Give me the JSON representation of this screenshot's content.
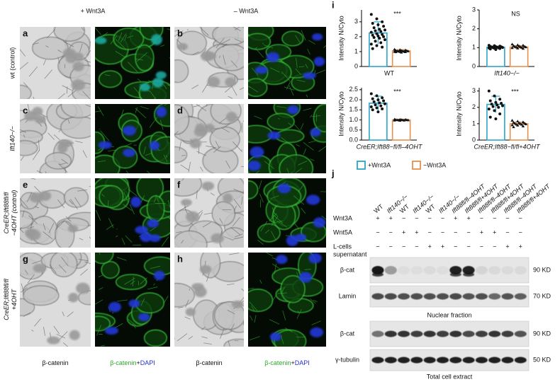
{
  "figure": {
    "col_headers": [
      "+ Wnt3A",
      "– Wnt3A"
    ],
    "panel_letters": [
      "a",
      "b",
      "c",
      "d",
      "e",
      "f",
      "g",
      "h"
    ],
    "row_labels": [
      [
        "wt (control)"
      ],
      [
        "Ift140−/−"
      ],
      [
        "CreER;Ift88fl/fl",
        "−4OHT (control)"
      ],
      [
        "CreER;Ift88fl/fl",
        "+4OHT"
      ]
    ],
    "bottom_labels": [
      [
        "β-catenin"
      ],
      [
        "β-catenin",
        "+",
        "DAPI"
      ],
      [
        "β-catenin"
      ],
      [
        "β-catenin",
        "+",
        "DAPI"
      ]
    ]
  },
  "charts_label": "i",
  "legend": [
    {
      "name": "+Wnt3A",
      "color": "#2aa6c9"
    },
    {
      "name": "−Wnt3A",
      "color": "#e8904a"
    }
  ],
  "chart_data": [
    {
      "type": "bar",
      "x_label": "WT",
      "y_label": "Intensity N/Cyto",
      "annotation": "***",
      "values": [
        2.25,
        1.05
      ],
      "errors": [
        0.75,
        0.08
      ],
      "points": [
        [
          3.5,
          3.2,
          3.0,
          2.9,
          2.8,
          2.7,
          2.6,
          2.5,
          2.45,
          2.4,
          2.35,
          2.3,
          2.2,
          2.15,
          2.1,
          2.05,
          2.0,
          1.95,
          1.9,
          1.8,
          1.7,
          1.6,
          1.5,
          1.4,
          1.3,
          1.2
        ],
        [
          1.15,
          1.12,
          1.1,
          1.08,
          1.07,
          1.06,
          1.05,
          1.04,
          1.03,
          1.02,
          1.01,
          1.0,
          0.99,
          0.98,
          0.97,
          0.95
        ]
      ],
      "ylim": [
        0,
        3.8
      ],
      "yticks": [
        0,
        1,
        2,
        3
      ]
    },
    {
      "type": "bar",
      "x_label": "Ift140−/−",
      "y_label": "Intensity N/Cyto",
      "annotation": "NS",
      "values": [
        1.02,
        1.03
      ],
      "errors": [
        0.06,
        0.07
      ],
      "points": [
        [
          1.12,
          1.1,
          1.08,
          1.06,
          1.05,
          1.04,
          1.03,
          1.02,
          1.01,
          1.0,
          0.99,
          0.98,
          0.97,
          0.95,
          0.93,
          0.9
        ],
        [
          1.18,
          1.14,
          1.12,
          1.1,
          1.08,
          1.06,
          1.05,
          1.04,
          1.03,
          1.02,
          1.0,
          0.99,
          0.97,
          0.95
        ]
      ],
      "ylim": [
        0,
        3
      ],
      "yticks": [
        0,
        1,
        2,
        3
      ]
    },
    {
      "type": "bar",
      "x_label": "CreER;Ift88−fl/fl–4OHT",
      "y_label": "Intensity N/Cyto",
      "annotation": "***",
      "values": [
        1.83,
        1.0
      ],
      "errors": [
        0.35,
        0.03
      ],
      "points": [
        [
          2.3,
          2.2,
          2.1,
          2.05,
          2.0,
          1.95,
          1.9,
          1.85,
          1.8,
          1.75,
          1.7,
          1.65,
          1.6,
          1.55,
          1.5,
          1.4
        ],
        [
          1.03,
          1.02,
          1.02,
          1.01,
          1.01,
          1.0,
          1.0,
          1.0,
          0.99,
          0.99,
          0.98,
          0.98,
          0.97
        ]
      ],
      "ylim": [
        0,
        2.6
      ],
      "yticks": [
        {
          "value": 0,
          "label": "0.0"
        },
        0.5,
        {
          "value": 1,
          "label": "1.0"
        },
        1.5,
        {
          "value": 2,
          "label": "2.0"
        },
        2.5
      ]
    },
    {
      "type": "bar",
      "x_label": "CreER;Ift88−fl/fl+4OHT",
      "y_label": "Intensity N/Cyto",
      "annotation": "***",
      "values": [
        2.18,
        1.0
      ],
      "errors": [
        0.5,
        0.1
      ],
      "points": [
        [
          3.0,
          2.7,
          2.5,
          2.4,
          2.3,
          2.25,
          2.2,
          2.15,
          2.1,
          2.05,
          2.0,
          1.9,
          1.8,
          1.6,
          1.4,
          1.3
        ],
        [
          1.2,
          1.15,
          1.1,
          1.08,
          1.05,
          1.03,
          1.02,
          1.0,
          0.98,
          0.96,
          0.95,
          0.92,
          0.9,
          0.85,
          0.8
        ]
      ],
      "ylim": [
        0,
        3.2
      ],
      "yticks": [
        0,
        1,
        2,
        3
      ]
    }
  ],
  "blot": {
    "label": "j",
    "lanes": [
      "WT",
      "Ift140−/−",
      "WT",
      "Ift140−/−",
      "WT",
      "Ift140−/−",
      "Ift88fl/fl–4OHT",
      "Ift88fl/fl+4OHT",
      "Ift88fl/fl–4OHT",
      "Ift88fl/fl+4OHT",
      "Ift88fl/fl–4OHT",
      "Ift88fl/fl+4OHT"
    ],
    "treatments": [
      {
        "name": [
          "Wnt3A"
        ],
        "signs": [
          "+",
          "+",
          "−",
          "−",
          "−",
          "−",
          "+",
          "+",
          "−",
          "−",
          "−",
          "−"
        ]
      },
      {
        "name": [
          "Wnt5A"
        ],
        "signs": [
          "−",
          "−",
          "+",
          "+",
          "−",
          "−",
          "−",
          "−",
          "+",
          "+",
          "−",
          "−"
        ]
      },
      {
        "name": [
          "L-cells",
          "supernatant"
        ],
        "signs": [
          "−",
          "−",
          "−",
          "−",
          "+",
          "+",
          "−",
          "−",
          "−",
          "−",
          "+",
          "+"
        ]
      }
    ],
    "rows": [
      {
        "name": "β-cat",
        "size": "90 KD"
      },
      {
        "name": "Lamin",
        "size": "70 KD"
      },
      {
        "name": "β-cat",
        "size": "90 KD"
      },
      {
        "name": "γ-tubulin",
        "size": "50 KD"
      }
    ],
    "nuclear_label": "Nuclear fraction",
    "total_label": "Total cell extract"
  }
}
